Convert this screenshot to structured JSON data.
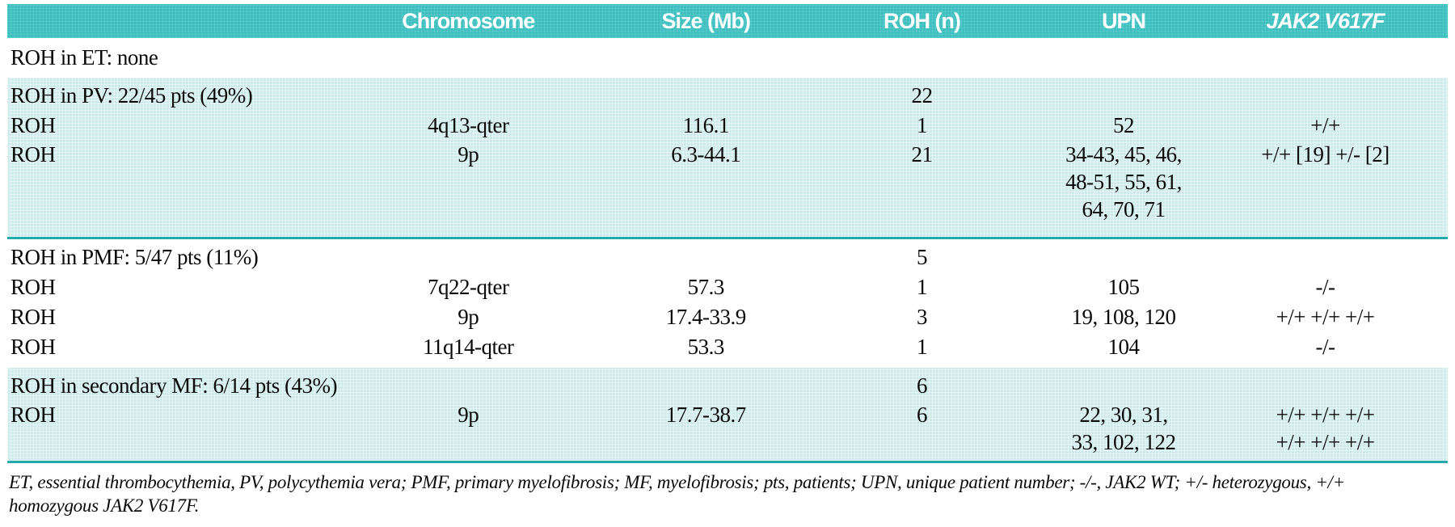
{
  "columns": {
    "label": "",
    "chromosome": "Chromosome",
    "size": "Size (Mb)",
    "roh": "ROH (n)",
    "upn": "UPN",
    "jak2": "JAK2 V617F"
  },
  "sections": [
    {
      "title": "ROH in ET: none",
      "roh_total": "",
      "rows": []
    },
    {
      "title": "ROH in PV: 22/45 pts (49%)",
      "roh_total": "22",
      "rows": [
        {
          "label": "ROH",
          "chromosome": "4q13-qter",
          "size": "116.1",
          "roh": "1",
          "upn": "52",
          "jak2": "+/+"
        },
        {
          "label": "ROH",
          "chromosome": "9p",
          "size": "6.3-44.1",
          "roh": "21",
          "upn": "34-43, 45, 46,\n48-51, 55, 61,\n64, 70, 71",
          "jak2": "+/+ [19] +/- [2]"
        }
      ]
    },
    {
      "title": "ROH in PMF: 5/47 pts (11%)",
      "roh_total": "5",
      "rows": [
        {
          "label": "ROH",
          "chromosome": "7q22-qter",
          "size": "57.3",
          "roh": "1",
          "upn": "105",
          "jak2": "-/-"
        },
        {
          "label": "ROH",
          "chromosome": "9p",
          "size": "17.4-33.9",
          "roh": "3",
          "upn": "19, 108, 120",
          "jak2": "+/+ +/+ +/+"
        },
        {
          "label": "ROH",
          "chromosome": "11q14-qter",
          "size": "53.3",
          "roh": "1",
          "upn": "104",
          "jak2": "-/-"
        }
      ]
    },
    {
      "title": "ROH in secondary MF: 6/14 pts (43%)",
      "roh_total": "6",
      "rows": [
        {
          "label": "ROH",
          "chromosome": "9p",
          "size": "17.7-38.7",
          "roh": "6",
          "upn": "22, 30, 31,\n33, 102, 122",
          "jak2": "+/+ +/+ +/+\n+/+ +/+ +/+"
        }
      ]
    }
  ],
  "footnote": {
    "line1": "ET, essential thrombocythemia, PV, polycythemia vera; PMF, primary myelofibrosis; MF, myelofibrosis; pts, patients; UPN, unique patient number; -/-, JAK2 WT; +/- heterozygous, +/+",
    "line2": "homozygous JAK2 V617F."
  },
  "colors": {
    "header_teal": "#3ec0c0",
    "band_teal": "#cdebeb",
    "rule_teal": "#22a9a9"
  }
}
